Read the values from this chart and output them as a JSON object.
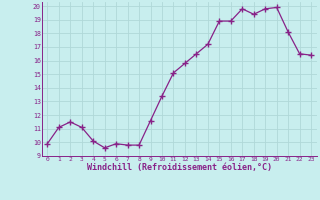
{
  "x": [
    0,
    1,
    2,
    3,
    4,
    5,
    6,
    7,
    8,
    9,
    10,
    11,
    12,
    13,
    14,
    15,
    16,
    17,
    18,
    19,
    20,
    21,
    22,
    23
  ],
  "y": [
    9.9,
    11.1,
    11.5,
    11.1,
    10.1,
    9.6,
    9.9,
    9.8,
    9.8,
    11.6,
    13.4,
    15.1,
    15.8,
    16.5,
    17.2,
    18.9,
    18.9,
    19.8,
    19.4,
    19.8,
    19.9,
    18.1,
    16.5,
    16.4
  ],
  "line_color": "#882288",
  "marker": "+",
  "marker_size": 4,
  "bg_color": "#c8eeee",
  "grid_color": "#b0d8d8",
  "xlabel": "Windchill (Refroidissement éolien,°C)",
  "xlabel_color": "#882288",
  "tick_color": "#882288",
  "ylim": [
    9,
    20
  ],
  "xlim": [
    -0.5,
    23.5
  ],
  "yticks": [
    9,
    10,
    11,
    12,
    13,
    14,
    15,
    16,
    17,
    18,
    19,
    20
  ],
  "xticks": [
    0,
    1,
    2,
    3,
    4,
    5,
    6,
    7,
    8,
    9,
    10,
    11,
    12,
    13,
    14,
    15,
    16,
    17,
    18,
    19,
    20,
    21,
    22,
    23
  ]
}
